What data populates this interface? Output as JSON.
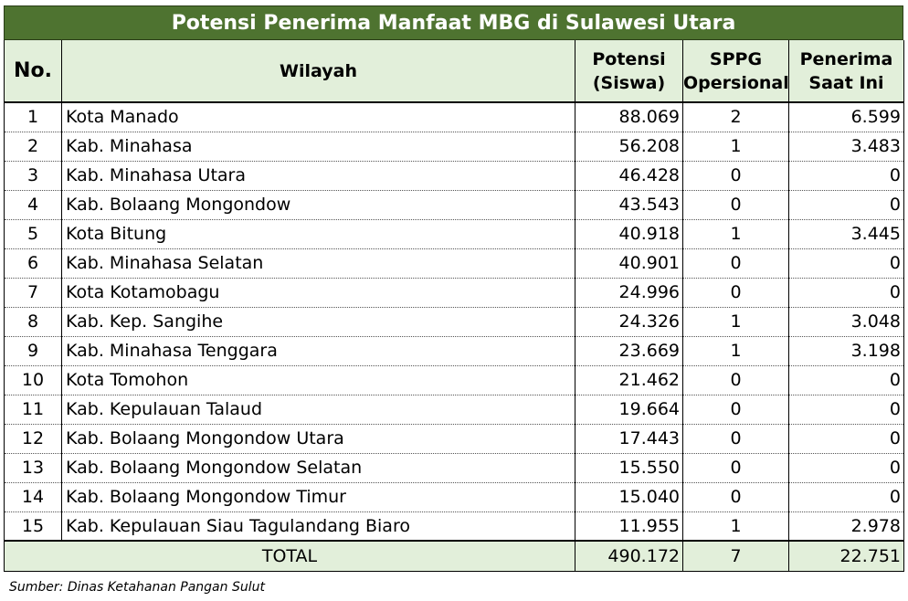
{
  "title": "Potensi Penerima Manfaat MBG di Sulawesi Utara",
  "headers": {
    "no": "No.",
    "wilayah": "Wilayah",
    "potensi_1": "Potensi",
    "potensi_2": "(Siswa)",
    "sppg_1": "SPPG",
    "sppg_2": "Opersional",
    "penerima_1": "Penerima",
    "penerima_2": "Saat Ini"
  },
  "rows": [
    {
      "no": "1",
      "wilayah": "Kota Manado",
      "potensi": "88.069",
      "sppg": "2",
      "penerima": "6.599"
    },
    {
      "no": "2",
      "wilayah": "Kab. Minahasa",
      "potensi": "56.208",
      "sppg": "1",
      "penerima": "3.483"
    },
    {
      "no": "3",
      "wilayah": "Kab. Minahasa Utara",
      "potensi": "46.428",
      "sppg": "0",
      "penerima": "0"
    },
    {
      "no": "4",
      "wilayah": "Kab. Bolaang Mongondow",
      "potensi": "43.543",
      "sppg": "0",
      "penerima": "0"
    },
    {
      "no": "5",
      "wilayah": "Kota Bitung",
      "potensi": "40.918",
      "sppg": "1",
      "penerima": "3.445"
    },
    {
      "no": "6",
      "wilayah": "Kab. Minahasa Selatan",
      "potensi": "40.901",
      "sppg": "0",
      "penerima": "0"
    },
    {
      "no": "7",
      "wilayah": "Kota Kotamobagu",
      "potensi": "24.996",
      "sppg": "0",
      "penerima": "0"
    },
    {
      "no": "8",
      "wilayah": "Kab. Kep. Sangihe",
      "potensi": "24.326",
      "sppg": "1",
      "penerima": "3.048"
    },
    {
      "no": "9",
      "wilayah": "Kab. Minahasa Tenggara",
      "potensi": "23.669",
      "sppg": "1",
      "penerima": "3.198"
    },
    {
      "no": "10",
      "wilayah": "Kota Tomohon",
      "potensi": "21.462",
      "sppg": "0",
      "penerima": "0"
    },
    {
      "no": "11",
      "wilayah": "Kab. Kepulauan Talaud",
      "potensi": "19.664",
      "sppg": "0",
      "penerima": "0"
    },
    {
      "no": "12",
      "wilayah": "Kab. Bolaang Mongondow Utara",
      "potensi": "17.443",
      "sppg": "0",
      "penerima": "0"
    },
    {
      "no": "13",
      "wilayah": "Kab. Bolaang Mongondow Selatan",
      "potensi": "15.550",
      "sppg": "0",
      "penerima": "0"
    },
    {
      "no": "14",
      "wilayah": "Kab. Bolaang Mongondow Timur",
      "potensi": "15.040",
      "sppg": "0",
      "penerima": "0"
    },
    {
      "no": "15",
      "wilayah": "Kab. Kepulauan Siau Tagulandang Biaro",
      "potensi": "11.955",
      "sppg": "1",
      "penerima": "2.978"
    }
  ],
  "total": {
    "label": "TOTAL",
    "potensi": "490.172",
    "sppg": "7",
    "penerima": "22.751"
  },
  "source": "Sumber: Dinas Ketahanan Pangan Sulut",
  "colors": {
    "title_bg": "#4e7330",
    "header_bg": "#e2efda"
  }
}
